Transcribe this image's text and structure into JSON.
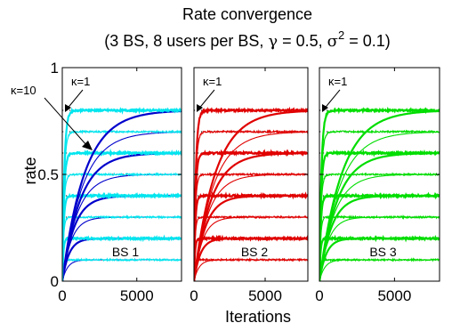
{
  "chart_data": {
    "type": "line",
    "title_line1": "Rate convergence",
    "title_line2_prefix": "(3 BS, 8 users per BS, ",
    "title_gamma": "γ",
    "title_gamma_value": " = 0.5, ",
    "title_sigma": "σ",
    "title_sigma_exp": "2",
    "title_sigma_value": " = 0.1)",
    "xlabel": "Iterations",
    "ylabel": "rate",
    "xlim": [
      0,
      8000
    ],
    "ylim": [
      0,
      1
    ],
    "xticks": [
      0,
      5000
    ],
    "xtick_labels": [
      "0",
      "5000"
    ],
    "yticks": [
      0,
      0.5,
      1
    ],
    "ytick_labels": [
      "0",
      "0.5",
      "1"
    ],
    "grid": false,
    "kappa_slow_label": "κ=10",
    "kappa_fast_label": "κ=1",
    "targets": [
      0.1,
      0.2,
      0.3,
      0.4,
      0.5,
      0.6,
      0.7,
      0.8
    ],
    "time_constants_kappa10": [
      350,
      450,
      600,
      800,
      1000,
      1200,
      1350,
      1500
    ],
    "time_constants_kappa1": [
      60,
      70,
      80,
      90,
      100,
      110,
      120,
      130
    ],
    "panels": [
      {
        "name": "BS 1",
        "label": "BS 1",
        "color_fast": "#00e5ee",
        "color_slow": "#0000cc",
        "has_slow_series": true,
        "has_kappa10_label": true
      },
      {
        "name": "BS 2",
        "label": "BS 2",
        "color_fast": "#e00000",
        "color_slow": "#e00000",
        "has_slow_series": true,
        "has_kappa10_label": false
      },
      {
        "name": "BS 3",
        "label": "BS 3",
        "color_fast": "#00dd00",
        "color_slow": "#00dd00",
        "has_slow_series": true,
        "has_kappa10_label": false
      }
    ]
  }
}
